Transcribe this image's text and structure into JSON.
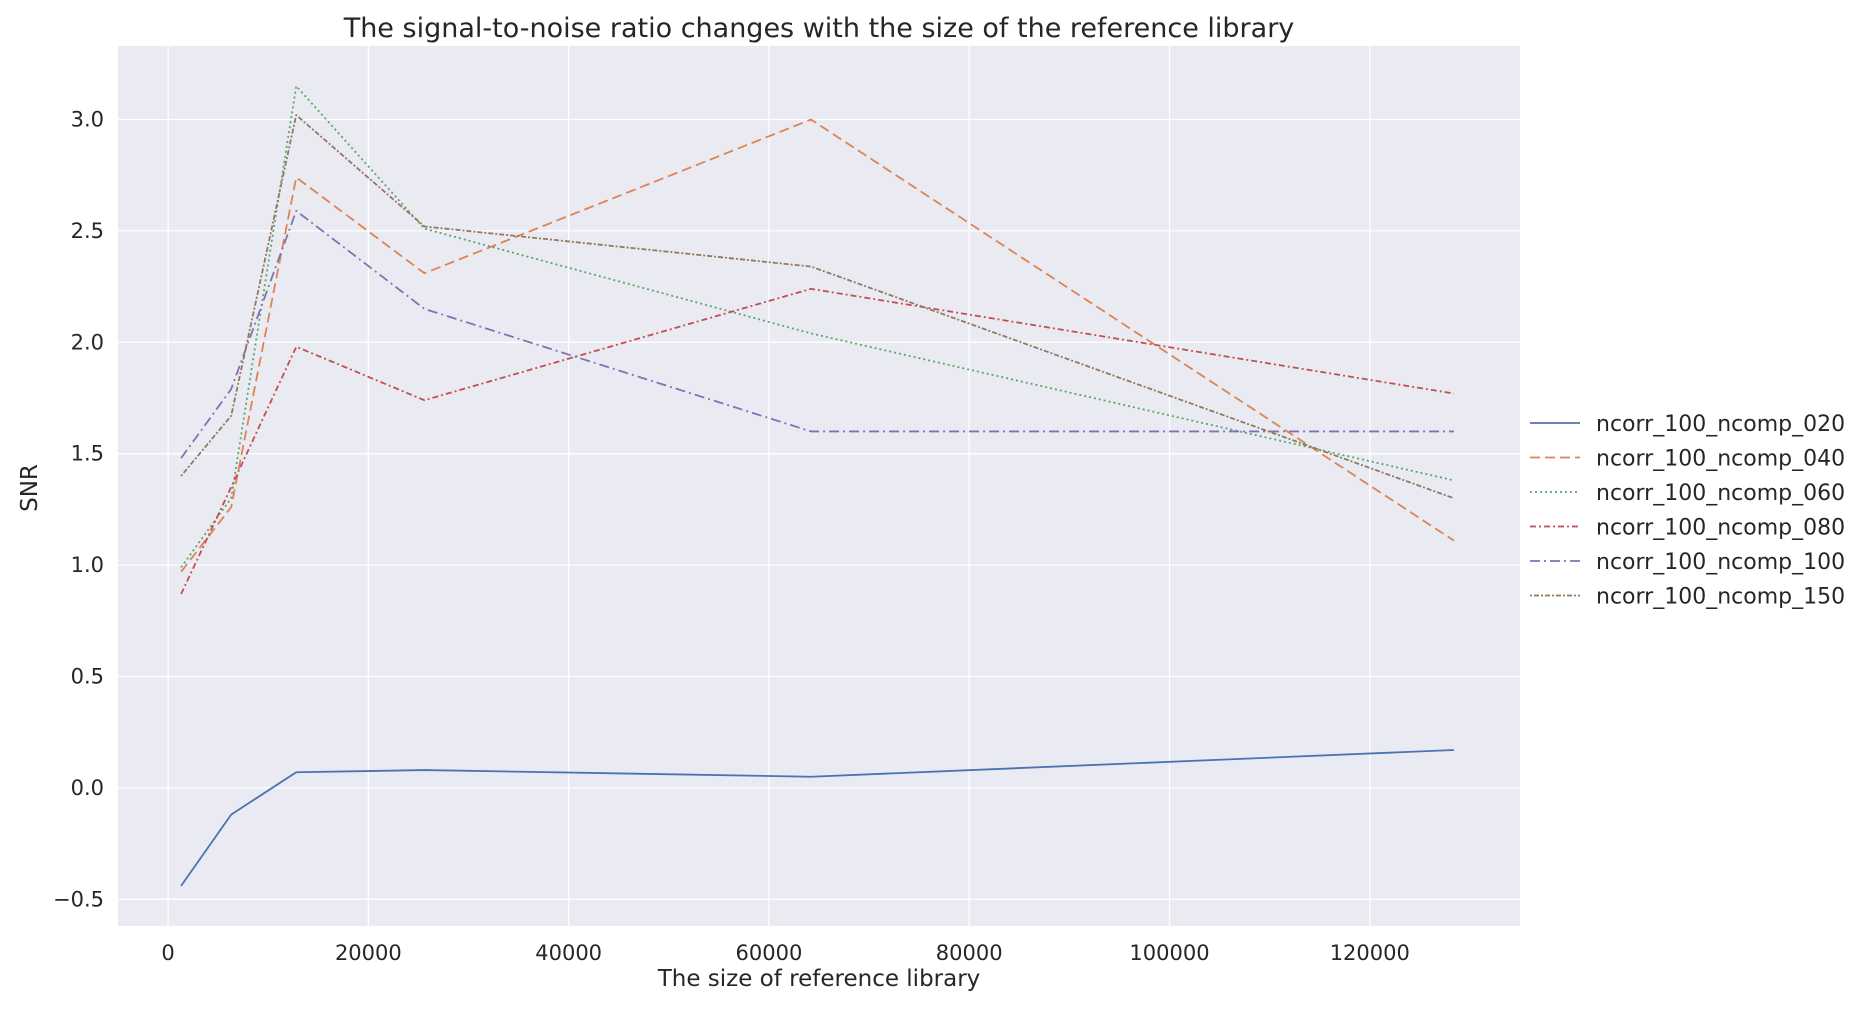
{
  "chart_data": {
    "type": "line",
    "title": "The signal-to-noise ratio changes with the size of the reference library",
    "xlabel": "The size of reference library",
    "ylabel": "SNR",
    "xlim": [
      -5000,
      135000
    ],
    "ylim": [
      -0.62,
      3.33
    ],
    "xticks": [
      0,
      20000,
      40000,
      60000,
      80000,
      100000,
      120000
    ],
    "xtick_labels": [
      "0",
      "20000",
      "40000",
      "60000",
      "80000",
      "100000",
      "120000"
    ],
    "yticks": [
      -0.5,
      0.0,
      0.5,
      1.0,
      1.5,
      2.0,
      2.5,
      3.0
    ],
    "ytick_labels": [
      "−0.5",
      "0.0",
      "0.5",
      "1.0",
      "1.5",
      "2.0",
      "2.5",
      "3.0"
    ],
    "grid": true,
    "background": "#eaeaf2",
    "legend_position": "outside-right",
    "x": [
      1300,
      6300,
      12800,
      25600,
      64200,
      128400
    ],
    "series": [
      {
        "name": "ncorr_100_ncomp_020",
        "color": "#4c72b0",
        "dash": "solid",
        "values": [
          -0.44,
          -0.12,
          0.07,
          0.08,
          0.05,
          0.17
        ]
      },
      {
        "name": "ncorr_100_ncomp_040",
        "color": "#dd8452",
        "dash": "dashed",
        "values": [
          0.97,
          1.26,
          2.74,
          2.31,
          3.0,
          1.11
        ]
      },
      {
        "name": "ncorr_100_ncomp_060",
        "color": "#55a868",
        "dash": "dotted",
        "values": [
          0.99,
          1.3,
          3.15,
          2.51,
          2.04,
          1.38
        ]
      },
      {
        "name": "ncorr_100_ncomp_080",
        "color": "#c44e52",
        "dash": "dashdot",
        "values": [
          0.87,
          1.35,
          1.98,
          1.74,
          2.24,
          1.77
        ]
      },
      {
        "name": "ncorr_100_ncomp_100",
        "color": "#8172b3",
        "dash": "dashdot2",
        "values": [
          1.48,
          1.79,
          2.59,
          2.15,
          1.6,
          1.6
        ]
      },
      {
        "name": "ncorr_100_ncomp_150",
        "color": "#937860",
        "dash": "densedot",
        "values": [
          1.4,
          1.67,
          3.02,
          2.52,
          2.34,
          1.3
        ]
      }
    ]
  }
}
